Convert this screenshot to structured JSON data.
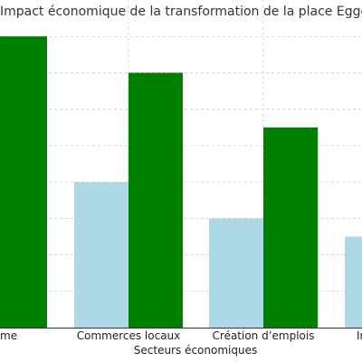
{
  "chart_data": {
    "type": "bar",
    "title": "Impact économique de la transformation de la place Eggenfe",
    "xlabel": "Secteurs économiques",
    "ylabel": "",
    "categories": [
      "Tourisme",
      "Commerces locaux",
      "Création d’emplois",
      "Immobilier"
    ],
    "category_labels_visible": [
      "me",
      "Commerces locaux",
      "Création d’emplois",
      "Im"
    ],
    "ylim": [
      0,
      90
    ],
    "series": [
      {
        "color": "#add8e6",
        "values": [
          null,
          40,
          30,
          25
        ]
      },
      {
        "color": "#008000",
        "values": [
          80,
          70,
          55,
          null
        ]
      }
    ],
    "grid": true
  }
}
